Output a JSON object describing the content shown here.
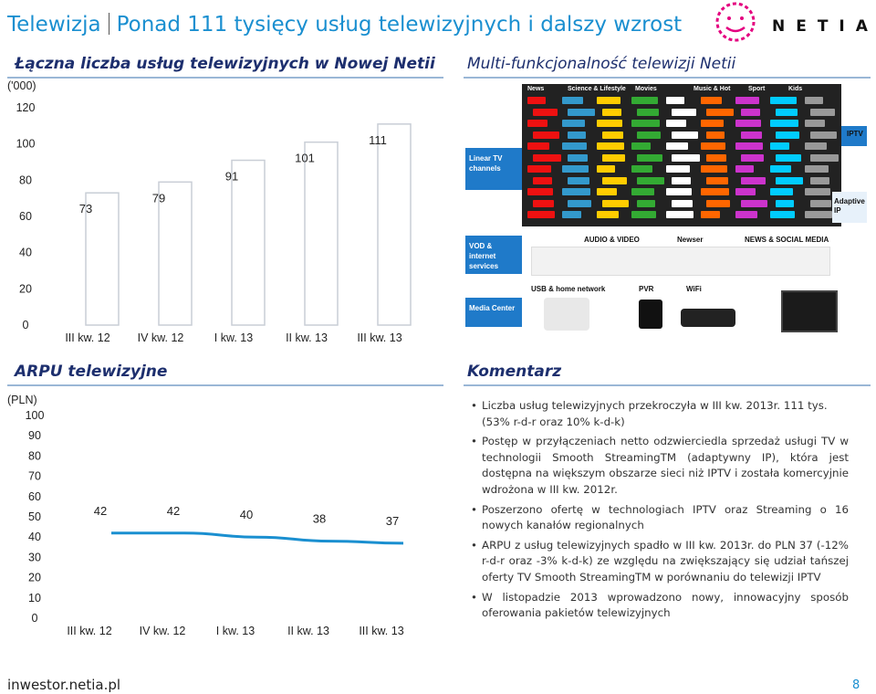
{
  "header": {
    "section": "Telewizja",
    "title": "Ponad 111 tysięcy usług telewizyjnych i dalszy wzrost",
    "logo_text": "NETIA"
  },
  "services": {
    "title": "Łączna liczba usług telewizyjnych w Nowej Netii",
    "unit": "('000)"
  },
  "multifunction": {
    "title": "Multi-funkcjonalność telewizji Netii",
    "rows": [
      "Linear TV channels",
      "VOD & internet services",
      "Media Center"
    ],
    "categories": [
      "News",
      "Science & Lifestyle",
      "Movies",
      "Music & Hot",
      "Sport",
      "Kids"
    ],
    "tags": [
      "IPTV",
      "Adaptive IP"
    ],
    "labels": [
      "AUDIO & VIDEO",
      "Newser",
      "NEWS & SOCIAL MEDIA",
      "USB & home network",
      "PVR",
      "WiFi"
    ]
  },
  "arpu": {
    "title": "ARPU telewizyjne",
    "unit": "(PLN)"
  },
  "comment": {
    "title": "Komentarz",
    "bullets": [
      {
        "text": "Liczba usług telewizyjnych przekroczyła w III kw. 2013r. 111 tys.",
        "sub": "(53% r-d-r oraz 10% k-d-k)"
      },
      {
        "text": "Postęp w przyłączeniach netto odzwierciedla sprzedaż usługi TV w technologii Smooth StreamingTM (adaptywny IP), która jest dostępna na większym obszarze sieci niż IPTV i została komercyjnie wdrożona w III kw. 2012r."
      },
      {
        "text": "Poszerzono ofertę w technologiach IPTV oraz Streaming o 16 nowych kanałów regionalnych"
      },
      {
        "text": "ARPU z usług telewizyjnych spadło w III kw. 2013r. do PLN 37 (-12% r-d-r oraz -3% k-d-k) ze względu na zwiększający się udział tańszej oferty TV Smooth StreamingTM w porównaniu do telewizji IPTV"
      },
      {
        "text": "W listopadzie 2013 wprowadzono nowy, innowacyjny sposób oferowania pakietów telewizyjnych"
      }
    ]
  },
  "footer": {
    "site": "inwestor.netia.pl",
    "page": "8"
  },
  "colors": {
    "accent": "#1a8fd0",
    "section_title": "#1d2f6e",
    "bar_border": "#c9ced6",
    "line": "#1a8fd0"
  },
  "chart_data": [
    {
      "type": "bar",
      "categories": [
        "III kw. 12",
        "IV kw. 12",
        "I kw. 13",
        "II kw. 13",
        "III kw. 13"
      ],
      "values": [
        73,
        79,
        91,
        101,
        111
      ],
      "ylim": [
        0,
        120
      ],
      "yticks": [
        0,
        20,
        40,
        60,
        80,
        100,
        120
      ],
      "grid": false
    },
    {
      "type": "line",
      "categories": [
        "III kw. 12",
        "IV kw. 12",
        "I kw. 13",
        "II kw. 13",
        "III kw. 13"
      ],
      "values": [
        42,
        42,
        40,
        38,
        37
      ],
      "ylim": [
        0,
        100
      ],
      "yticks": [
        0,
        10,
        20,
        30,
        40,
        50,
        60,
        70,
        80,
        90,
        100
      ],
      "grid": false
    }
  ]
}
